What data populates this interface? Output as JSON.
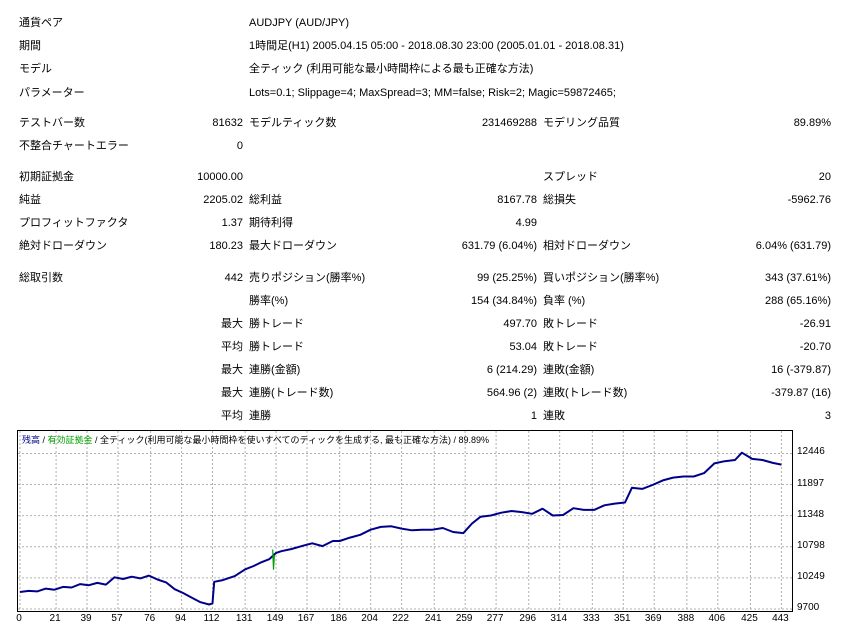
{
  "header": {
    "symbol_label": "通貨ペア",
    "symbol_value": "AUDJPY (AUD/JPY)",
    "period_label": "期間",
    "period_value": "1時間足(H1) 2005.04.15 05:00 - 2018.08.30 23:00 (2005.01.01 - 2018.08.31)",
    "model_label": "モデル",
    "model_value": "全ティック (利用可能な最小時間枠による最も正確な方法)",
    "params_label": "パラメーター",
    "params_value": "Lots=0.1; Slippage=4; MaxSpread=3; MM=false; Risk=2; Magic=59872465;"
  },
  "stats": {
    "bars_label": "テストバー数",
    "bars_value": "81632",
    "ticks_label": "モデルティック数",
    "ticks_value": "231469288",
    "quality_label": "モデリング品質",
    "quality_value": "89.89%",
    "errors_label": "不整合チャートエラー",
    "errors_value": "0",
    "deposit_label": "初期証拠金",
    "deposit_value": "10000.00",
    "spread_label": "スプレッド",
    "spread_value": "20",
    "net_label": "純益",
    "net_value": "2205.02",
    "gross_profit_label": "総利益",
    "gross_profit_value": "8167.78",
    "gross_loss_label": "総損失",
    "gross_loss_value": "-5962.76",
    "pf_label": "プロフィットファクタ",
    "pf_value": "1.37",
    "expected_label": "期待利得",
    "expected_value": "4.99",
    "abs_dd_label": "絶対ドローダウン",
    "abs_dd_value": "180.23",
    "max_dd_label": "最大ドローダウン",
    "max_dd_value": "631.79 (6.04%)",
    "rel_dd_label": "相対ドローダウン",
    "rel_dd_value": "6.04% (631.79)",
    "trades_label": "総取引数",
    "trades_value": "442",
    "short_label": "売りポジション(勝率%)",
    "short_value": "99 (25.25%)",
    "long_label": "買いポジション(勝率%)",
    "long_value": "343 (37.61%)",
    "win_label": "勝率(%)",
    "win_value": "154 (34.84%)",
    "loss_label": "負率 (%)",
    "loss_value": "288 (65.16%)",
    "max1": "最大",
    "lw_label": "勝トレード",
    "lw_value": "497.70",
    "ll_label": "敗トレード",
    "ll_value": "-26.91",
    "avg1": "平均",
    "aw_label": "勝トレード",
    "aw_value": "53.04",
    "al_label": "敗トレード",
    "al_value": "-20.70",
    "max2": "最大",
    "mcw_label": "連勝(金額)",
    "mcw_value": "6 (214.29)",
    "mcl_label": "連敗(金額)",
    "mcl_value": "16 (-379.87)",
    "max3": "最大",
    "mcp_label": "連勝(トレード数)",
    "mcp_value": "564.96 (2)",
    "mcpl_label": "連敗(トレード数)",
    "mcpl_value": "-379.87 (16)",
    "avg2": "平均",
    "acw_label": "連勝",
    "acw_value": "1",
    "acl_label": "連敗",
    "acl_value": "3"
  },
  "chart_data": {
    "type": "line",
    "legend": {
      "balance": "残高",
      "sep1": " / ",
      "equity": "有効証拠金",
      "rest": " / 全ティック(利用可能な最小時間枠を使いすべてのティックを生成する, 最も正確な方法) / 89.89%"
    },
    "colors": {
      "balance": "#00008b",
      "equity": "#00a000",
      "grid": "#b0b0b0"
    },
    "yticks": [
      "12446",
      "11897",
      "11348",
      "10798",
      "10249",
      "9700"
    ],
    "ytick_values": [
      12446,
      11897,
      11348,
      10798,
      10249,
      9700
    ],
    "xticks": [
      "0",
      "21",
      "39",
      "57",
      "76",
      "94",
      "112",
      "131",
      "149",
      "167",
      "186",
      "204",
      "222",
      "241",
      "259",
      "277",
      "296",
      "314",
      "333",
      "351",
      "369",
      "388",
      "406",
      "425",
      "443"
    ],
    "xlim": [
      0,
      448
    ],
    "ylim": [
      9700,
      12560
    ],
    "series": [
      {
        "x": [
          0,
          5,
          10,
          15,
          20,
          25,
          30,
          35,
          40,
          45,
          50,
          55,
          60,
          65,
          70,
          75,
          80,
          85,
          90,
          95,
          100,
          105,
          110,
          112,
          113,
          118,
          125,
          131,
          136,
          140,
          145,
          149,
          152,
          158,
          165,
          170,
          176,
          182,
          186,
          192,
          198,
          204,
          210,
          216,
          222,
          228,
          234,
          240,
          246,
          252,
          258,
          263,
          268,
          274,
          280,
          286,
          292,
          298,
          304,
          310,
          316,
          322,
          328,
          334,
          340,
          346,
          352,
          356,
          362,
          368,
          374,
          380,
          386,
          392,
          398,
          404,
          410,
          416,
          420,
          426,
          432,
          438,
          443
        ],
        "values": [
          10000,
          10020,
          10010,
          10060,
          10040,
          10090,
          10080,
          10140,
          10120,
          10160,
          10130,
          10260,
          10230,
          10270,
          10240,
          10290,
          10220,
          10170,
          10050,
          9980,
          9900,
          9820,
          9780,
          9800,
          10180,
          10210,
          10280,
          10400,
          10460,
          10520,
          10580,
          10690,
          10720,
          10760,
          10820,
          10860,
          10810,
          10900,
          10900,
          10960,
          11010,
          11100,
          11150,
          11160,
          11120,
          11090,
          11100,
          11100,
          11130,
          11060,
          11040,
          11210,
          11330,
          11350,
          11400,
          11430,
          11410,
          11380,
          11470,
          11350,
          11360,
          11480,
          11450,
          11450,
          11530,
          11560,
          11580,
          11840,
          11820,
          11890,
          11970,
          12020,
          12040,
          12040,
          12100,
          12270,
          12310,
          12330,
          12460,
          12350,
          12330,
          12280,
          12250
        ]
      },
      {
        "x": [
          147,
          147.5,
          148
        ],
        "values": [
          10750,
          10400,
          10650
        ]
      }
    ]
  }
}
